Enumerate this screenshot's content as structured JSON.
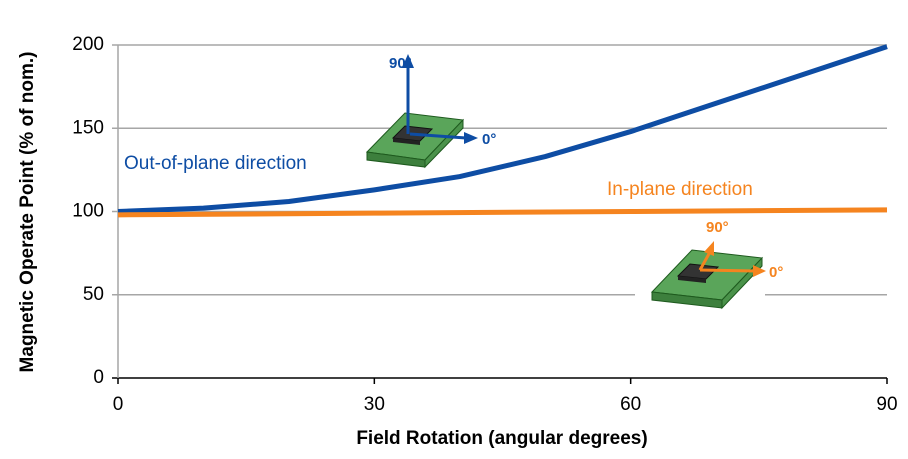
{
  "chart_data": {
    "type": "line",
    "x_label": "Field Rotation (angular degrees)",
    "y_label": "Magnetic Operate Point (% of nom.)",
    "xlim": [
      0,
      90
    ],
    "xticks": [
      0,
      30,
      60,
      90
    ],
    "ylim": [
      0,
      200
    ],
    "yticks": [
      0,
      50,
      100,
      150,
      200
    ],
    "grid": true,
    "series": [
      {
        "name": "Out-of-plane direction",
        "color": "#0e4da4",
        "x": [
          0,
          10,
          20,
          30,
          40,
          50,
          60,
          70,
          80,
          90
        ],
        "values": [
          100,
          102,
          106,
          113,
          121,
          133,
          148,
          165,
          182,
          199
        ]
      },
      {
        "name": "In-plane direction",
        "color": "#f5841f",
        "x": [
          0,
          30,
          60,
          90
        ],
        "values": [
          98,
          99,
          100,
          101
        ]
      }
    ],
    "annotations": [
      "90°",
      "0°",
      "90°",
      "0°"
    ]
  }
}
